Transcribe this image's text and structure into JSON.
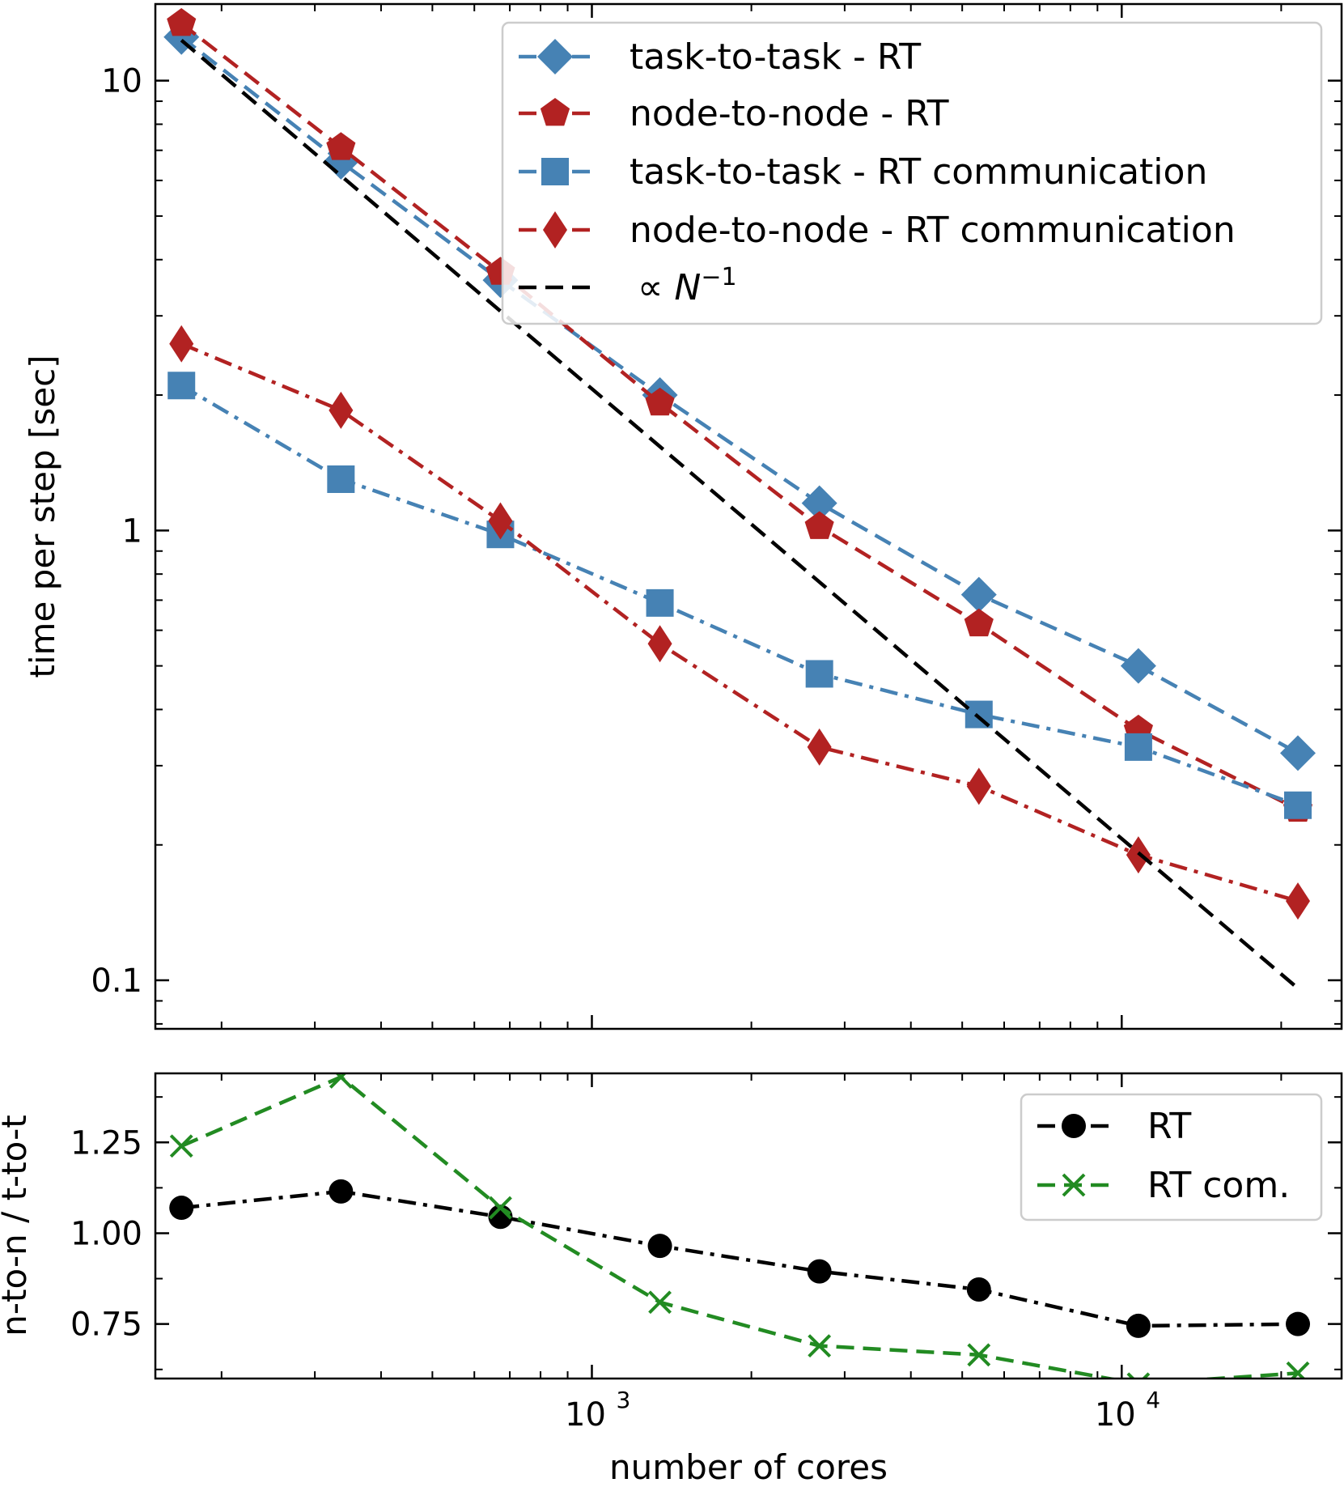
{
  "chart_data": [
    {
      "type": "line",
      "panel": "top",
      "xscale": "log",
      "yscale": "log",
      "xlim": [
        150,
        26000
      ],
      "ylim": [
        0.078,
        14.8
      ],
      "ylabel": "time per step [sec]",
      "yticks": [
        {
          "value": 10,
          "label": "10"
        },
        {
          "value": 1,
          "label": "1"
        },
        {
          "value": 0.1,
          "label": "0.1"
        }
      ],
      "x": [
        168,
        336,
        672,
        1344,
        2688,
        5376,
        10752,
        21504
      ],
      "series": [
        {
          "name": "task-to-task - RT",
          "color": "#4682b4",
          "marker": "diamond",
          "linestyle": "dashed",
          "values": [
            12.5,
            6.6,
            3.6,
            2.0,
            1.15,
            0.72,
            0.5,
            0.32
          ]
        },
        {
          "name": "node-to-node - RT",
          "color": "#b22222",
          "marker": "pentagon",
          "linestyle": "dashed",
          "values": [
            13.4,
            7.1,
            3.75,
            1.92,
            1.02,
            0.62,
            0.36,
            0.24
          ]
        },
        {
          "name": "task-to-task - RT communication",
          "color": "#4682b4",
          "marker": "square",
          "linestyle": "dashdot",
          "values": [
            2.1,
            1.3,
            0.98,
            0.69,
            0.48,
            0.39,
            0.33,
            0.245
          ]
        },
        {
          "name": "node-to-node - RT communication",
          "color": "#b22222",
          "marker": "thin_diamond",
          "linestyle": "dashdot",
          "values": [
            2.6,
            1.85,
            1.05,
            0.56,
            0.33,
            0.27,
            0.19,
            0.15
          ]
        },
        {
          "name": "∝ N⁻¹",
          "color": "#000000",
          "marker": "none",
          "linestyle": "dashed",
          "x": [
            168,
            21504
          ],
          "values": [
            12.3,
            0.096
          ]
        }
      ],
      "legend": {
        "position": "top-right",
        "items": [
          "task-to-task - RT",
          "node-to-node - RT",
          "task-to-task - RT communication",
          "node-to-node - RT communication",
          "∝ N⁻¹"
        ]
      }
    },
    {
      "type": "line",
      "panel": "bottom",
      "xscale": "log",
      "yscale": "linear",
      "xlim": [
        150,
        26000
      ],
      "ylim": [
        0.6,
        1.44
      ],
      "xlabel": "number of cores",
      "ylabel": "n-to-n / t-to-t",
      "yticks": [
        {
          "value": 1.25,
          "label": "1.25"
        },
        {
          "value": 1.0,
          "label": "1.00"
        },
        {
          "value": 0.75,
          "label": "0.75"
        }
      ],
      "xticks": [
        {
          "value": 1000,
          "base": "10",
          "exp": "3"
        },
        {
          "value": 10000,
          "base": "10",
          "exp": "4"
        }
      ],
      "x": [
        168,
        336,
        672,
        1344,
        2688,
        5376,
        10752,
        21504
      ],
      "series": [
        {
          "name": "RT",
          "color": "#000000",
          "marker": "circle",
          "linestyle": "dashdot",
          "values": [
            1.07,
            1.115,
            1.045,
            0.965,
            0.895,
            0.845,
            0.745,
            0.75
          ]
        },
        {
          "name": "RT com.",
          "color": "#228b22",
          "marker": "x",
          "linestyle": "dashed",
          "values": [
            1.24,
            1.43,
            1.07,
            0.81,
            0.69,
            0.665,
            0.585,
            0.615
          ]
        }
      ],
      "legend": {
        "position": "top-right",
        "items": [
          "RT",
          "RT com."
        ]
      }
    }
  ]
}
